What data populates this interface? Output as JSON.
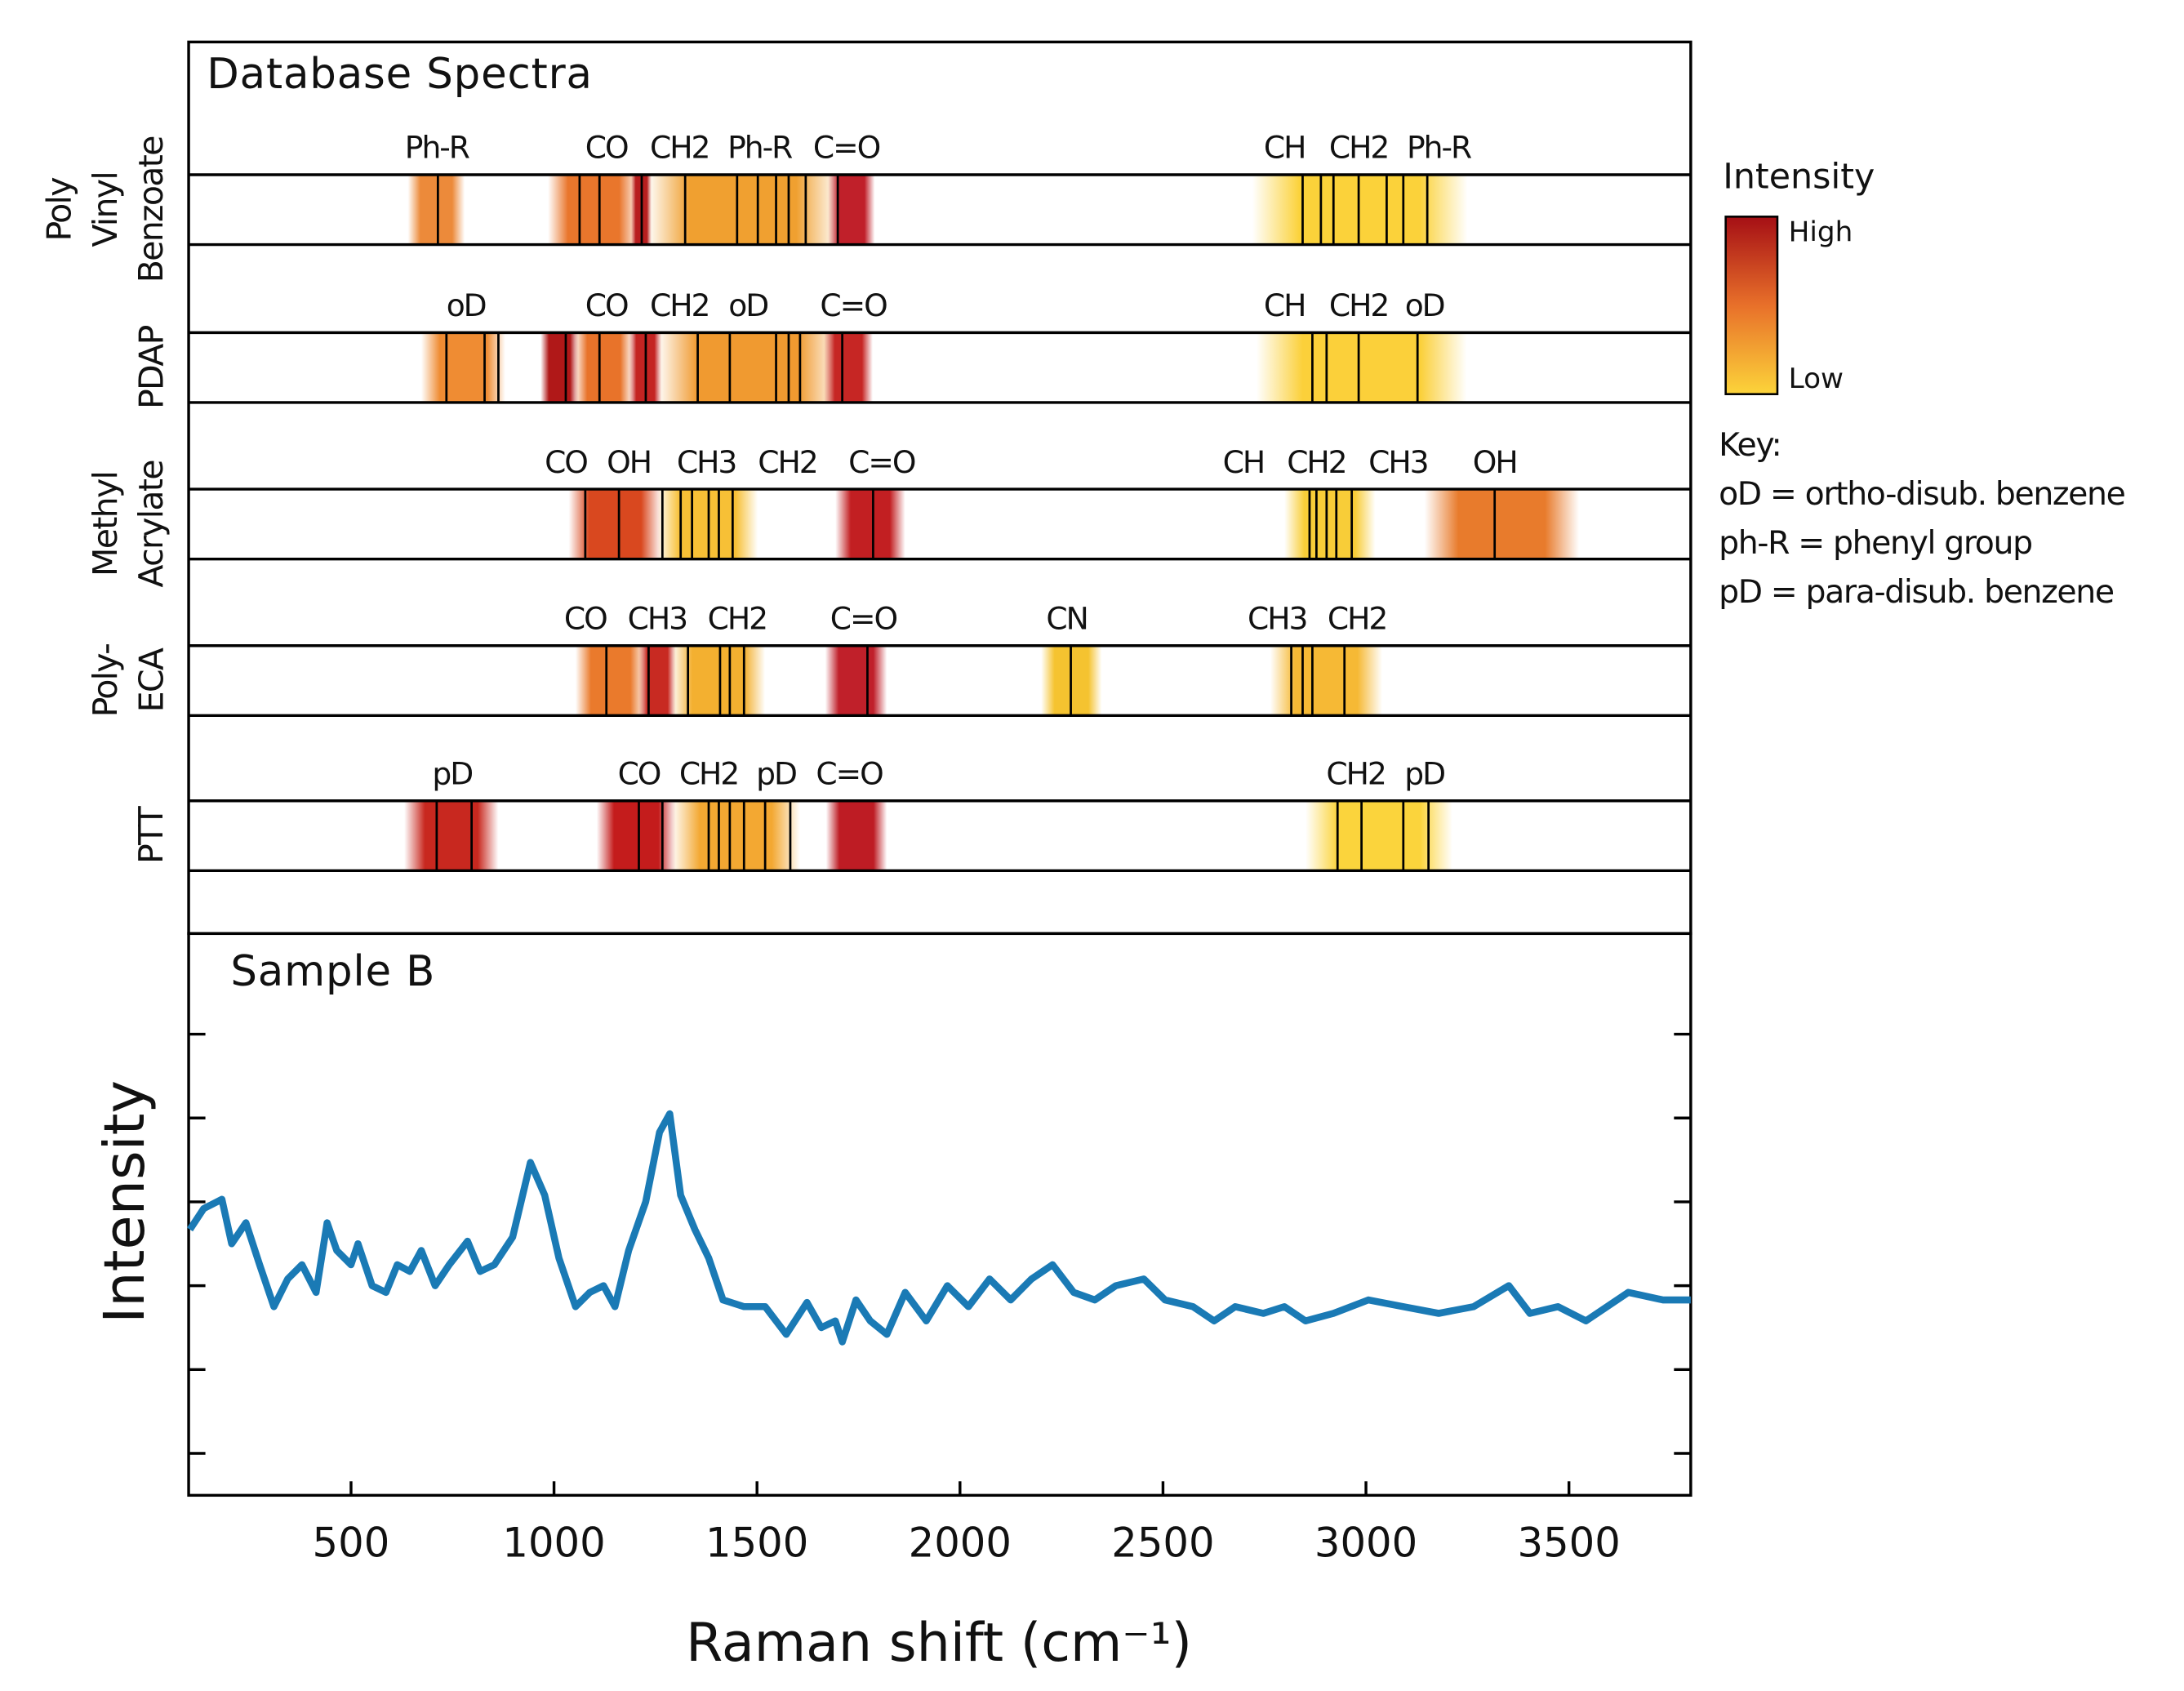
{
  "chart_data": [
    {
      "type": "band",
      "title": "Database Spectra",
      "xlim": [
        100,
        3800
      ],
      "rows": [
        {
          "name": [
            "Poly",
            "Vinyl",
            "Benzoate"
          ],
          "labels": [
            {
              "text": "Ph-R",
              "x": 711
            },
            {
              "text": "CO",
              "x": 1129
            },
            {
              "text": "CH2",
              "x": 1309
            },
            {
              "text": "Ph-R",
              "x": 1506
            },
            {
              "text": "C=O",
              "x": 1720
            },
            {
              "text": "CH",
              "x": 2799
            },
            {
              "text": "CH2",
              "x": 2982
            },
            {
              "text": "Ph-R",
              "x": 3179
            }
          ],
          "regions": [
            {
              "range": [
                640,
                780
              ],
              "color": "#ec8a3a"
            },
            {
              "range": [
                985,
                1210
              ],
              "color": "#e9762c"
            },
            {
              "range": [
                1190,
                1240
              ],
              "color": "#b81e1e"
            },
            {
              "range": [
                1230,
                1700
              ],
              "color": "#f0a030"
            },
            {
              "range": [
                1675,
                1790
              ],
              "color": "#c0202a"
            },
            {
              "range": [
                2720,
                3250
              ],
              "color": "#fbd23a"
            }
          ],
          "peaks": [
            714,
            1063,
            1112,
            1216,
            1323,
            1451,
            1502,
            1547,
            1578,
            1620,
            1699,
            2844,
            2889,
            2920,
            2982,
            3051,
            3092,
            3151
          ]
        },
        {
          "name": [
            "PDAP"
          ],
          "labels": [
            {
              "text": "oD",
              "x": 783
            },
            {
              "text": "CO",
              "x": 1129
            },
            {
              "text": "CH2",
              "x": 1309
            },
            {
              "text": "oD",
              "x": 1478
            },
            {
              "text": "C=O",
              "x": 1737
            },
            {
              "text": "CH",
              "x": 2799
            },
            {
              "text": "CH2",
              "x": 2982
            },
            {
              "text": "oD",
              "x": 3144
            }
          ],
          "regions": [
            {
              "range": [
                673,
                880
              ],
              "color": "#ef8c33"
            },
            {
              "range": [
                967,
                1060
              ],
              "color": "#b01818"
            },
            {
              "range": [
                1050,
                1195
              ],
              "color": "#e8732a"
            },
            {
              "range": [
                1185,
                1265
              ],
              "color": "#c42422"
            },
            {
              "range": [
                1255,
                1700
              ],
              "color": "#f09a30"
            },
            {
              "range": [
                1665,
                1785
              ],
              "color": "#c62624"
            },
            {
              "range": [
                2730,
                3248
              ],
              "color": "#fbd03a"
            }
          ],
          "peaks": [
            735,
            829,
            863,
            1029,
            1112,
            1226,
            1354,
            1433,
            1547,
            1578,
            1606,
            1710,
            2868,
            2903,
            2982,
            3127
          ]
        },
        {
          "name": [
            "Methyl",
            "Acrylate"
          ],
          "labels": [
            {
              "text": "CO",
              "x": 1029
            },
            {
              "text": "OH",
              "x": 1184
            },
            {
              "text": "CH3",
              "x": 1375
            },
            {
              "text": "CH2",
              "x": 1575
            },
            {
              "text": "C=O",
              "x": 1807
            },
            {
              "text": "CH",
              "x": 2698
            },
            {
              "text": "CH2",
              "x": 2878
            },
            {
              "text": "CH3",
              "x": 3079
            },
            {
              "text": "OH",
              "x": 3317
            }
          ],
          "regions": [
            {
              "range": [
                1036,
                1265
              ],
              "color": "#d9481f"
            },
            {
              "range": [
                1255,
                1502
              ],
              "color": "#f7c036"
            },
            {
              "range": [
                1693,
                1865
              ],
              "color": "#c21f22"
            },
            {
              "range": [
                2799,
                3023
              ],
              "color": "#f8cd38"
            },
            {
              "range": [
                3144,
                3525
              ],
              "color": "#e87b2c"
            }
          ],
          "peaks": [
            1077,
            1160,
            1267,
            1312,
            1340,
            1381,
            1406,
            1440,
            1786,
            2861,
            2878,
            2903,
            2927,
            2965,
            3317
          ]
        },
        {
          "name": [
            "Poly-",
            "ECA"
          ],
          "labels": [
            {
              "text": "CO",
              "x": 1077
            },
            {
              "text": "CH3",
              "x": 1254
            },
            {
              "text": "CH2",
              "x": 1451
            },
            {
              "text": "C=O",
              "x": 1762
            },
            {
              "text": "CN",
              "x": 2263
            },
            {
              "text": "CH3",
              "x": 2781
            },
            {
              "text": "CH2",
              "x": 2978
            }
          ],
          "regions": [
            {
              "range": [
                1053,
                1226
              ],
              "color": "#ea7a2c"
            },
            {
              "range": [
                1209,
                1300
              ],
              "color": "#c82a22"
            },
            {
              "range": [
                1290,
                1520
              ],
              "color": "#f3b030"
            },
            {
              "range": [
                1668,
                1820
              ],
              "color": "#c0202a"
            },
            {
              "range": [
                2200,
                2349
              ],
              "color": "#f5c330"
            },
            {
              "range": [
                2764,
                3040
              ],
              "color": "#f6b935"
            }
          ],
          "peaks": [
            1129,
            1233,
            1330,
            1409,
            1433,
            1468,
            1772,
            2273,
            2816,
            2844,
            2868,
            2947
          ]
        },
        {
          "name": [
            "PTT"
          ],
          "labels": [
            {
              "text": "pD",
              "x": 749
            },
            {
              "text": "CO",
              "x": 1209
            },
            {
              "text": "CH2",
              "x": 1381
            },
            {
              "text": "pD",
              "x": 1547
            },
            {
              "text": "C=O",
              "x": 1727
            },
            {
              "text": "CH2",
              "x": 2975
            },
            {
              "text": "pD",
              "x": 3144
            }
          ],
          "regions": [
            {
              "range": [
                631,
                863
              ],
              "color": "#c8281f"
            },
            {
              "range": [
                1105,
                1300
              ],
              "color": "#c41c1c"
            },
            {
              "range": [
                1290,
                1606
              ],
              "color": "#f3a832"
            },
            {
              "range": [
                1670,
                1820
              ],
              "color": "#be1c24"
            },
            {
              "range": [
                2851,
                3213
              ],
              "color": "#fbd43c"
            }
          ],
          "peaks": [
            711,
            797,
            1209,
            1267,
            1381,
            1406,
            1433,
            1468,
            1520,
            1582,
            2930,
            2989,
            3092,
            3154
          ]
        }
      ],
      "legend": {
        "title": "Intensity",
        "high": "High",
        "low": "Low",
        "colors": [
          "#a50f15",
          "#e8702a",
          "#fcd43a"
        ]
      },
      "key": {
        "title": "Key:",
        "items": [
          "oD = ortho-disub. benzene",
          "ph-R = phenyl group",
          "pD = para-disub. benzene"
        ]
      }
    },
    {
      "type": "line",
      "title": "Sample B",
      "color": "#1a7ab5",
      "xlabel": "Raman shift (cm⁻¹)",
      "ylabel": "Intensity",
      "xlim": [
        100,
        3800
      ],
      "xticks": [
        500,
        1000,
        1500,
        2000,
        2500,
        3000,
        3500
      ],
      "ylim": [
        0,
        6.7
      ],
      "yticks": [
        0.5,
        1.5,
        2.5,
        3.5,
        4.5,
        5.5
      ],
      "x": [
        103,
        137,
        182,
        206,
        241,
        275,
        310,
        344,
        379,
        414,
        441,
        465,
        500,
        517,
        552,
        586,
        614,
        645,
        673,
        707,
        742,
        787,
        818,
        853,
        898,
        942,
        977,
        1012,
        1053,
        1088,
        1122,
        1150,
        1184,
        1226,
        1260,
        1285,
        1312,
        1347,
        1381,
        1416,
        1468,
        1520,
        1572,
        1623,
        1658,
        1693,
        1710,
        1744,
        1779,
        1820,
        1865,
        1917,
        1969,
        2021,
        2073,
        2125,
        2176,
        2228,
        2280,
        2332,
        2384,
        2453,
        2505,
        2574,
        2626,
        2678,
        2747,
        2799,
        2851,
        2920,
        3006,
        3092,
        3179,
        3265,
        3352,
        3404,
        3473,
        3542,
        3646,
        3732,
        3800
      ],
      "values": [
        3.17,
        3.42,
        3.53,
        3.0,
        3.25,
        2.75,
        2.25,
        2.58,
        2.75,
        2.42,
        3.25,
        2.92,
        2.75,
        3.0,
        2.5,
        2.42,
        2.75,
        2.67,
        2.92,
        2.5,
        2.75,
        3.03,
        2.67,
        2.75,
        3.08,
        3.97,
        3.58,
        2.83,
        2.25,
        2.42,
        2.5,
        2.25,
        2.92,
        3.5,
        4.33,
        4.55,
        3.58,
        3.17,
        2.83,
        2.33,
        2.25,
        2.25,
        1.92,
        2.3,
        2.0,
        2.08,
        1.83,
        2.33,
        2.08,
        1.92,
        2.42,
        2.08,
        2.5,
        2.25,
        2.58,
        2.33,
        2.58,
        2.75,
        2.42,
        2.33,
        2.5,
        2.58,
        2.33,
        2.25,
        2.08,
        2.25,
        2.17,
        2.25,
        2.08,
        2.17,
        2.33,
        2.25,
        2.17,
        2.25,
        2.5,
        2.17,
        2.25,
        2.08,
        2.42,
        2.33,
        2.33
      ]
    }
  ]
}
